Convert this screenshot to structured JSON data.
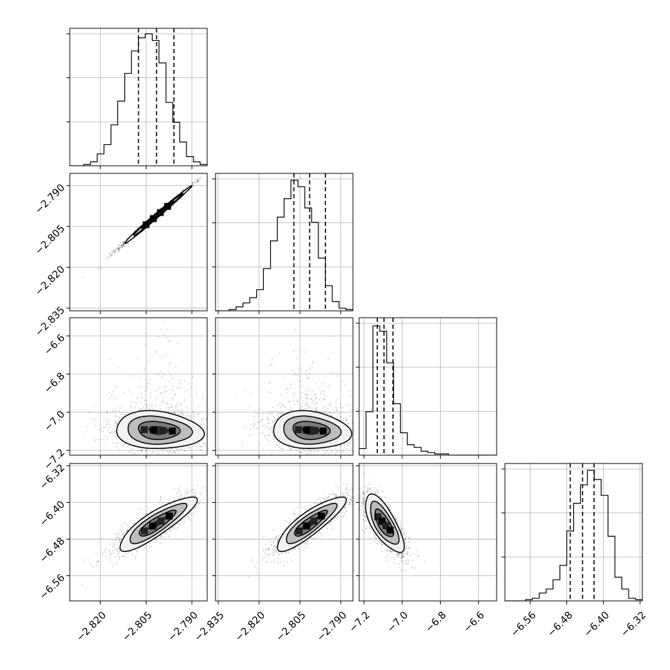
{
  "chart_data": {
    "type": "corner",
    "grid": true,
    "parameters": [
      {
        "range": [
          -2.83,
          -2.785
        ],
        "ticks": [
          "-2.820",
          "-2.805",
          "-2.790"
        ],
        "tick_values": [
          -2.82,
          -2.805,
          -2.79
        ],
        "quantiles": [
          -2.8075,
          -2.8016,
          -2.7959
        ]
      },
      {
        "range": [
          -2.836,
          -2.7855
        ],
        "ticks": [
          "-2.835",
          "-2.820",
          "-2.805",
          "-2.790"
        ],
        "tick_values": [
          -2.835,
          -2.82,
          -2.805,
          -2.79
        ],
        "quantiles": [
          -2.8072,
          -2.8014,
          -2.7956
        ]
      },
      {
        "range": [
          -7.225,
          -6.505
        ],
        "ticks": [
          "-7.2",
          "-7.0",
          "-6.8",
          "-6.6"
        ],
        "tick_values": [
          -7.2,
          -7.0,
          -6.8,
          -6.6
        ],
        "quantiles": [
          -7.13,
          -7.095,
          -7.048
        ]
      },
      {
        "range": [
          -6.615,
          -6.315
        ],
        "ticks": [
          "-6.56",
          "-6.48",
          "-6.40",
          "-6.32"
        ],
        "tick_values": [
          -6.56,
          -6.48,
          -6.4,
          -6.32
        ],
        "quantiles": [
          -6.4725,
          -6.4455,
          -6.4205
        ]
      }
    ],
    "histograms": [
      {
        "param": 0,
        "bin_edges": [
          -2.83,
          -2.8278,
          -2.8255,
          -2.8232,
          -2.821,
          -2.8188,
          -2.8165,
          -2.8143,
          -2.812,
          -2.8098,
          -2.8075,
          -2.8053,
          -2.803,
          -2.8008,
          -2.7985,
          -2.7963,
          -2.794,
          -2.7918,
          -2.7895,
          -2.7873,
          -2.785
        ],
        "counts": [
          0.0,
          0.0,
          0.01,
          0.03,
          0.09,
          0.16,
          0.31,
          0.49,
          0.7,
          0.87,
          0.97,
          1.0,
          0.95,
          0.78,
          0.48,
          0.33,
          0.18,
          0.07,
          0.03,
          0.01
        ]
      },
      {
        "param": 1,
        "bin_edges": [
          -2.836,
          -2.8335,
          -2.831,
          -2.8284,
          -2.8259,
          -2.8234,
          -2.8209,
          -2.8184,
          -2.8158,
          -2.8133,
          -2.8108,
          -2.8083,
          -2.8057,
          -2.8032,
          -2.8007,
          -2.7982,
          -2.7956,
          -2.7931,
          -2.7906,
          -2.7881,
          -2.7855
        ],
        "counts": [
          0.0,
          0.0,
          0.01,
          0.03,
          0.06,
          0.1,
          0.16,
          0.32,
          0.53,
          0.71,
          0.85,
          0.99,
          0.94,
          0.78,
          0.67,
          0.4,
          0.19,
          0.07,
          0.02,
          0.01
        ]
      },
      {
        "param": 2,
        "bin_edges": [
          -7.225,
          -7.189,
          -7.153,
          -7.117,
          -7.081,
          -7.045,
          -7.009,
          -6.973,
          -6.937,
          -6.901,
          -6.865,
          -6.829,
          -6.793,
          -6.757,
          -6.721,
          -6.685,
          -6.649,
          -6.613,
          -6.577,
          -6.541,
          -6.505
        ],
        "counts": [
          0.05,
          0.33,
          0.98,
          0.94,
          0.7,
          0.39,
          0.17,
          0.08,
          0.06,
          0.03,
          0.02,
          0.01,
          0.01,
          0.0,
          0.0,
          0.0,
          0.0,
          0.0,
          0.0,
          0.0
        ]
      },
      {
        "param": 3,
        "bin_edges": [
          -6.615,
          -6.6,
          -6.585,
          -6.57,
          -6.555,
          -6.54,
          -6.525,
          -6.51,
          -6.495,
          -6.48,
          -6.465,
          -6.45,
          -6.435,
          -6.42,
          -6.405,
          -6.39,
          -6.375,
          -6.36,
          -6.345,
          -6.33,
          -6.315
        ],
        "counts": [
          0.0,
          0.0,
          0.0,
          0.01,
          0.02,
          0.06,
          0.09,
          0.16,
          0.27,
          0.53,
          0.74,
          0.88,
          0.99,
          0.92,
          0.8,
          0.49,
          0.18,
          0.09,
          0.02,
          0.01
        ]
      }
    ],
    "joint_panels": [
      {
        "x_param": 0,
        "y_param": 1,
        "center": [
          -2.8015,
          -2.801
        ],
        "sigma": [
          0.0052,
          0.005
        ],
        "rho": 0.995
      },
      {
        "x_param": 0,
        "y_param": 2,
        "center": [
          -2.801,
          -7.095
        ],
        "sigma": [
          0.0068,
          0.047
        ],
        "rho": -0.12
      },
      {
        "x_param": 1,
        "y_param": 2,
        "center": [
          -2.801,
          -7.095
        ],
        "sigma": [
          0.0068,
          0.047
        ],
        "rho": -0.12
      },
      {
        "x_param": 0,
        "y_param": 3,
        "center": [
          -2.8015,
          -6.446
        ],
        "sigma": [
          0.006,
          0.028
        ],
        "rho": 0.86
      },
      {
        "x_param": 1,
        "y_param": 3,
        "center": [
          -2.8012,
          -6.446
        ],
        "sigma": [
          0.006,
          0.028
        ],
        "rho": 0.86
      },
      {
        "x_param": 2,
        "y_param": 3,
        "center": [
          -7.095,
          -6.446
        ],
        "sigma": [
          0.048,
          0.03
        ],
        "rho": -0.72
      }
    ]
  }
}
